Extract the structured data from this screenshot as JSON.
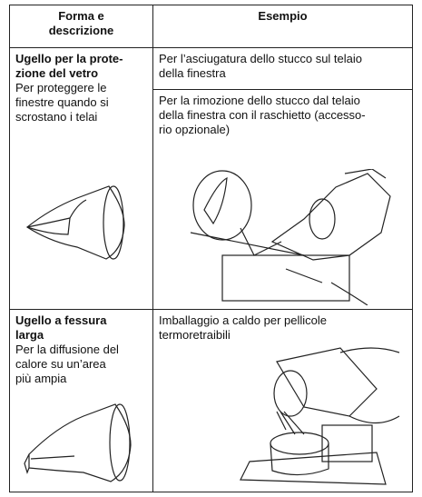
{
  "table": {
    "header": [
      "Forma e\ndescrizione",
      "Esempio"
    ],
    "rows": [
      {
        "title": "Ugello per la prote-\nzione del vetro",
        "description": "Per proteggere le\nfinestre quando si\nscrostano i telai",
        "examples": [
          "Per l’asciugatura dello stucco sul telaio\ndella finestra",
          "Per la rimozione dello stucco dal telaio\ndella finestra con il raschietto (accesso-\nrio opzionale)"
        ]
      },
      {
        "title": "Ugello a fessura\nlarga",
        "description": "Per la diffusione del\ncalore su un’area\npiù ampia",
        "examples": [
          "Imballaggio a caldo per pellicole\ntermoretraibili"
        ]
      }
    ]
  }
}
